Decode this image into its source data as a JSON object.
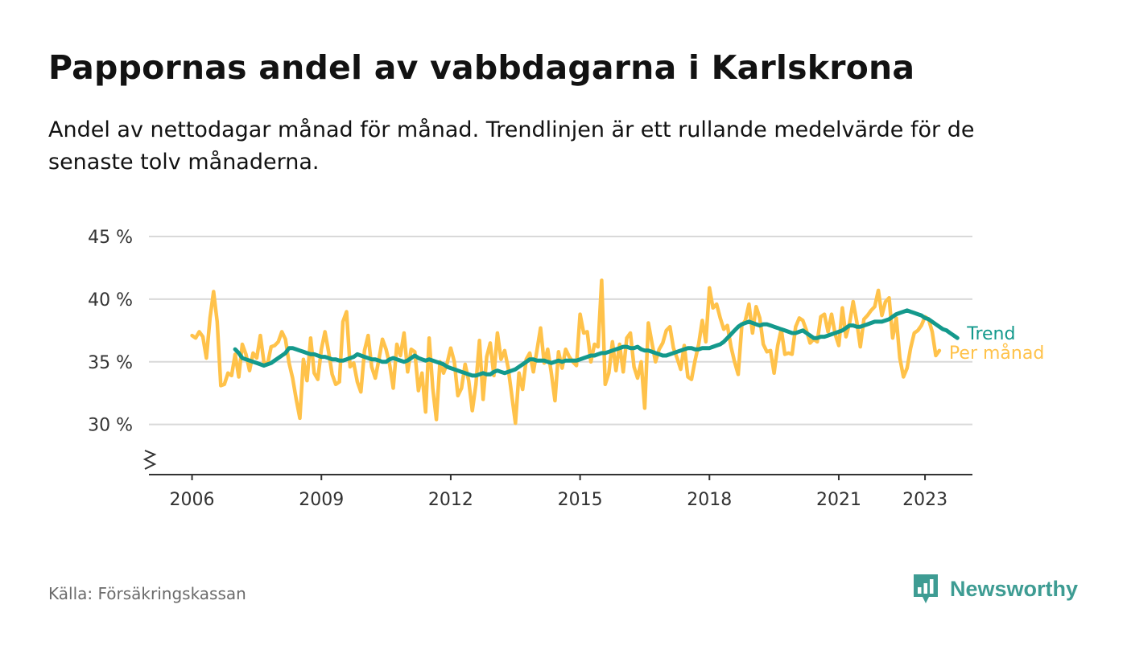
{
  "header": {
    "title": "Pappornas andel av vabbdagarna i Karlskrona",
    "subtitle": "Andel av nettodagar månad för månad. Trendlinjen är ett rullande medelvärde för de senaste tolv månaderna."
  },
  "footer": {
    "source": "Källa: Försäkringskassan",
    "brand": "Newsworthy",
    "brand_icon": "newsworthy-logo-icon"
  },
  "colors": {
    "monthly": "#ffc24a",
    "trend": "#13998c",
    "grid": "#d9d9d9",
    "axis": "#333333",
    "brand": "#3e9c93"
  },
  "chart_data": {
    "type": "line",
    "title": "Pappornas andel av vabbdagarna i Karlskrona",
    "xlabel": "",
    "ylabel": "",
    "x_start": 2006,
    "x_step_months": 1,
    "xlim": [
      2005.0,
      2024.1
    ],
    "ylim": [
      26,
      45
    ],
    "y_ticks": [
      30,
      35,
      40,
      45
    ],
    "y_tick_labels": [
      "30 %",
      "35 %",
      "40 %",
      "45 %"
    ],
    "x_ticks": [
      2006,
      2009,
      2012,
      2015,
      2018,
      2021,
      2023
    ],
    "x_tick_labels": [
      "2006",
      "2009",
      "2012",
      "2015",
      "2018",
      "2021",
      "2023"
    ],
    "axis_break": true,
    "grid": true,
    "series": [
      {
        "name": "Per månad",
        "color": "#ffc24a",
        "values": [
          37.1,
          36.9,
          37.4,
          37.0,
          35.3,
          38.5,
          40.6,
          38.2,
          33.1,
          33.2,
          34.1,
          33.9,
          35.6,
          33.8,
          36.4,
          35.6,
          34.3,
          35.7,
          35.3,
          37.1,
          35.0,
          34.8,
          36.2,
          36.3,
          36.6,
          37.4,
          36.8,
          34.9,
          33.7,
          32.0,
          30.5,
          35.2,
          33.5,
          36.9,
          34.1,
          33.6,
          36.0,
          37.4,
          35.8,
          34.0,
          33.2,
          33.4,
          38.2,
          39.0,
          34.6,
          34.9,
          33.4,
          32.6,
          35.9,
          37.1,
          34.6,
          33.7,
          35.2,
          36.8,
          36.0,
          34.8,
          32.9,
          36.4,
          35.5,
          37.3,
          34.2,
          36.0,
          35.8,
          32.7,
          34.1,
          31.0,
          36.9,
          32.9,
          30.4,
          35.0,
          34.1,
          34.9,
          36.1,
          35.0,
          32.3,
          32.9,
          34.8,
          33.5,
          31.1,
          33.2,
          36.7,
          32.0,
          35.4,
          36.5,
          33.9,
          37.3,
          35.2,
          35.9,
          34.5,
          32.3,
          30.1,
          34.1,
          32.8,
          35.2,
          35.7,
          34.2,
          35.9,
          37.7,
          34.9,
          36.0,
          34.1,
          31.9,
          35.8,
          34.5,
          36.0,
          35.4,
          35.0,
          34.7,
          38.8,
          37.3,
          37.4,
          35.0,
          36.4,
          36.2,
          41.5,
          33.2,
          34.1,
          36.6,
          34.3,
          36.4,
          34.2,
          36.9,
          37.3,
          34.6,
          33.7,
          35.0,
          31.3,
          38.1,
          36.5,
          35.0,
          36.0,
          36.5,
          37.5,
          37.8,
          36.1,
          35.3,
          34.4,
          36.3,
          33.8,
          33.6,
          35.1,
          36.4,
          38.3,
          36.6,
          40.9,
          39.3,
          39.6,
          38.5,
          37.6,
          37.9,
          36.2,
          35.0,
          34.0,
          37.9,
          38.3,
          39.6,
          37.3,
          39.4,
          38.5,
          36.4,
          35.8,
          35.9,
          34.1,
          36.3,
          37.6,
          35.6,
          35.7,
          35.6,
          37.8,
          38.5,
          38.3,
          37.5,
          36.5,
          36.8,
          36.6,
          38.6,
          38.8,
          37.4,
          38.8,
          37.2,
          36.3,
          39.3,
          37.0,
          38.1,
          39.8,
          38.2,
          36.2,
          38.4,
          38.7,
          39.1,
          39.4,
          40.7,
          38.7,
          39.8,
          40.1,
          36.9,
          38.5,
          35.3,
          33.8,
          34.5,
          36.1,
          37.3,
          37.5,
          37.9,
          38.6,
          38.4,
          37.4,
          35.5,
          35.9
        ]
      },
      {
        "name": "Trend",
        "color": "#13998c",
        "start_index": 12,
        "values": [
          36.0,
          35.7,
          35.3,
          35.2,
          35.1,
          35.0,
          34.9,
          34.8,
          34.7,
          34.8,
          34.9,
          35.1,
          35.3,
          35.5,
          35.7,
          36.1,
          36.1,
          36.0,
          35.9,
          35.8,
          35.7,
          35.6,
          35.6,
          35.5,
          35.4,
          35.4,
          35.3,
          35.2,
          35.2,
          35.1,
          35.1,
          35.2,
          35.3,
          35.4,
          35.6,
          35.5,
          35.4,
          35.3,
          35.2,
          35.2,
          35.1,
          35.0,
          35.0,
          35.2,
          35.3,
          35.2,
          35.1,
          35.0,
          35.1,
          35.3,
          35.5,
          35.3,
          35.2,
          35.1,
          35.2,
          35.1,
          35.0,
          34.9,
          34.8,
          34.6,
          34.5,
          34.4,
          34.3,
          34.2,
          34.1,
          34.0,
          33.9,
          33.9,
          34.0,
          34.1,
          34.0,
          34.0,
          34.2,
          34.3,
          34.2,
          34.1,
          34.2,
          34.3,
          34.4,
          34.6,
          34.8,
          35.0,
          35.2,
          35.2,
          35.1,
          35.1,
          35.1,
          35.0,
          34.9,
          35.0,
          35.1,
          35.0,
          35.1,
          35.1,
          35.1,
          35.1,
          35.2,
          35.3,
          35.4,
          35.5,
          35.5,
          35.6,
          35.7,
          35.7,
          35.8,
          35.9,
          36.0,
          36.1,
          36.2,
          36.2,
          36.1,
          36.1,
          36.2,
          36.0,
          35.9,
          35.9,
          35.8,
          35.7,
          35.6,
          35.5,
          35.5,
          35.6,
          35.7,
          35.8,
          35.9,
          36.0,
          36.1,
          36.1,
          36.0,
          36.0,
          36.1,
          36.1,
          36.1,
          36.2,
          36.3,
          36.4,
          36.6,
          36.9,
          37.2,
          37.5,
          37.8,
          38.0,
          38.1,
          38.2,
          38.1,
          38.0,
          37.9,
          38.0,
          38.0,
          37.9,
          37.8,
          37.7,
          37.6,
          37.5,
          37.4,
          37.3,
          37.3,
          37.4,
          37.5,
          37.3,
          37.1,
          36.9,
          36.9,
          37.0,
          37.0,
          37.1,
          37.2,
          37.3,
          37.4,
          37.5,
          37.7,
          37.9,
          37.9,
          37.8,
          37.8,
          37.9,
          38.0,
          38.1,
          38.2,
          38.2,
          38.2,
          38.3,
          38.4,
          38.6,
          38.8,
          38.9,
          39.0,
          39.1,
          39.0,
          38.9,
          38.8,
          38.7,
          38.5,
          38.4,
          38.2,
          38.0,
          37.8,
          37.6,
          37.5,
          37.3,
          37.1,
          36.9
        ]
      }
    ],
    "legend": [
      "Trend",
      "Per månad"
    ],
    "legend_placement": "right, at line ends"
  }
}
